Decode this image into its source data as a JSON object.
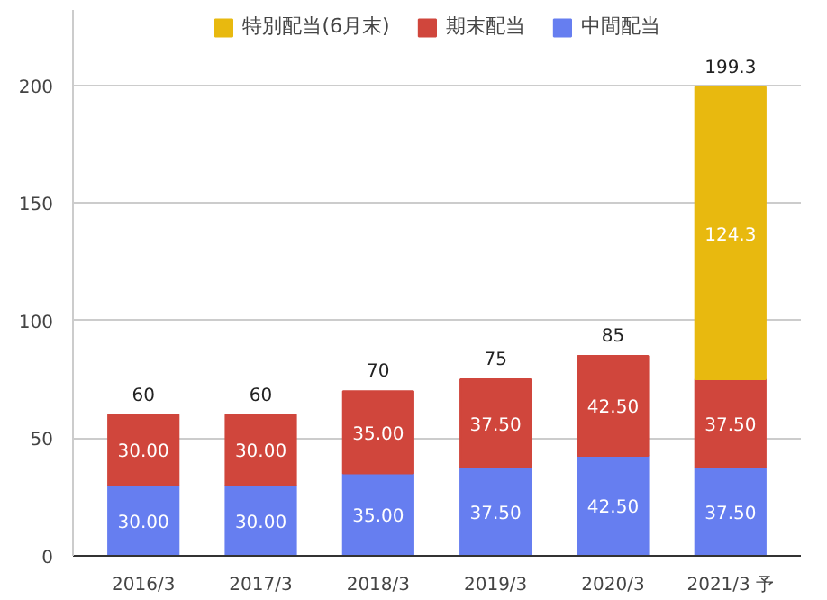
{
  "chart_data": {
    "type": "bar",
    "stacked": true,
    "categories": [
      "2016/3",
      "2017/3",
      "2018/3",
      "2019/3",
      "2020/3",
      "2021/3 予"
    ],
    "series": [
      {
        "name": "中間配当",
        "color": "#667ef0",
        "values": [
          30,
          30,
          35,
          37.5,
          42.5,
          37.5
        ],
        "value_labels": [
          "30.00",
          "30.00",
          "35.00",
          "37.50",
          "42.50",
          "37.50"
        ]
      },
      {
        "name": "期末配当",
        "color": "#d0463c",
        "values": [
          30,
          30,
          35,
          37.5,
          42.5,
          37.5
        ],
        "value_labels": [
          "30.00",
          "30.00",
          "35.00",
          "37.50",
          "42.50",
          "37.50"
        ]
      },
      {
        "name": "特別配当(6月末)",
        "color": "#e8b90f",
        "values": [
          null,
          null,
          null,
          null,
          null,
          124.3
        ],
        "value_labels": [
          null,
          null,
          null,
          null,
          null,
          "124.3"
        ]
      }
    ],
    "totals": [
      "60",
      "60",
      "70",
      "75",
      "85",
      "199.3"
    ],
    "ylim": [
      0,
      232
    ],
    "yticks": [
      0,
      50,
      100,
      150,
      200
    ],
    "grid": "y",
    "legend": "top"
  }
}
